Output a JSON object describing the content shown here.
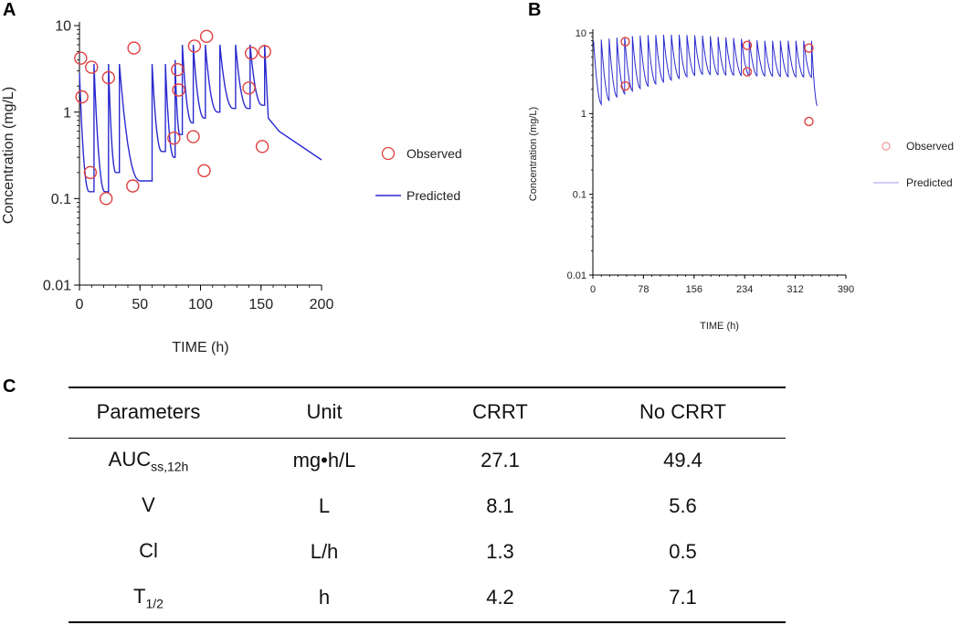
{
  "panels": {
    "a": "A",
    "b": "B",
    "c": "C"
  },
  "chart_data": [
    {
      "id": "A",
      "type": "line",
      "xlabel": "TIME (h)",
      "ylabel": "Concentration (mg/L)",
      "xlim": [
        0,
        200
      ],
      "ylim": [
        0.01,
        10
      ],
      "yscale": "log",
      "xticks": [
        "0",
        "50",
        "100",
        "150",
        "200"
      ],
      "yticks": [
        "0.01",
        "0.1",
        "1",
        "10"
      ],
      "legend": [
        "Observed",
        "Predicted"
      ],
      "legend_position": "right",
      "colors": {
        "observed": "#e04040",
        "predicted": "#2a2ad0"
      },
      "series": [
        {
          "name": "Observed",
          "type": "scatter",
          "points": [
            [
              1,
              4.2
            ],
            [
              2,
              1.5
            ],
            [
              9,
              0.2
            ],
            [
              10,
              3.3
            ],
            [
              22,
              0.1
            ],
            [
              24,
              2.5
            ],
            [
              44,
              0.14
            ],
            [
              45,
              5.5
            ],
            [
              78,
              0.5
            ],
            [
              81,
              3.1
            ],
            [
              82,
              1.8
            ],
            [
              94,
              0.52
            ],
            [
              95,
              5.8
            ],
            [
              103,
              0.21
            ],
            [
              105,
              7.5
            ],
            [
              140,
              1.9
            ],
            [
              142,
              4.8
            ],
            [
              151,
              0.4
            ],
            [
              153,
              5.0
            ]
          ]
        },
        {
          "name": "Predicted",
          "type": "line",
          "peaks": [
            [
              0,
              2.8
            ],
            [
              12,
              3.6
            ],
            [
              24,
              3.6
            ],
            [
              33,
              3.6
            ],
            [
              60,
              3.6
            ],
            [
              71,
              3.6
            ],
            [
              79,
              4.0
            ],
            [
              85,
              6.0
            ],
            [
              94,
              6.0
            ],
            [
              104,
              6.0
            ],
            [
              116,
              6.0
            ],
            [
              129,
              6.0
            ],
            [
              141,
              6.0
            ],
            [
              153,
              6.0
            ]
          ],
          "troughs": [
            [
              8,
              0.12
            ],
            [
              21,
              0.12
            ],
            [
              30,
              0.2
            ],
            [
              50,
              0.16
            ],
            [
              68,
              0.35
            ],
            [
              78,
              0.3
            ],
            [
              83,
              0.55
            ],
            [
              93,
              0.75
            ],
            [
              103,
              0.85
            ],
            [
              114,
              1.0
            ],
            [
              127,
              1.1
            ],
            [
              139,
              1.1
            ],
            [
              151,
              1.2
            ]
          ],
          "tail": [
            [
              156,
              0.85
            ],
            [
              165,
              0.6
            ],
            [
              200,
              0.28
            ]
          ]
        }
      ]
    },
    {
      "id": "B",
      "type": "line",
      "xlabel": "TIME (h)",
      "ylabel": "Concentration (mg/L)",
      "xlim": [
        0,
        390
      ],
      "ylim": [
        0.01,
        10
      ],
      "yscale": "log",
      "xticks": [
        "0",
        "78",
        "156",
        "234",
        "312",
        "390"
      ],
      "yticks": [
        "0.01",
        "0.1",
        "1",
        "10"
      ],
      "legend": [
        "Observed",
        "Predicted"
      ],
      "legend_position": "right",
      "colors": {
        "observed": "#e04040",
        "predicted": "#2a2ad0"
      },
      "series": [
        {
          "name": "Observed",
          "type": "scatter",
          "points": [
            [
              50,
              7.8
            ],
            [
              50,
              2.2
            ],
            [
              238,
              7.0
            ],
            [
              238,
              3.3
            ],
            [
              333,
              6.5
            ],
            [
              333,
              0.8
            ]
          ]
        },
        {
          "name": "Predicted",
          "type": "line",
          "dose_interval": 12,
          "n_doses": 29,
          "peak_range": [
            8.0,
            9.8
          ],
          "trough_range": [
            1.3,
            3.3
          ],
          "end_time": 346,
          "end_value": 1.25
        }
      ]
    }
  ],
  "table": {
    "headers": [
      "Parameters",
      "Unit",
      "CRRT",
      "No CRRT"
    ],
    "rows": [
      {
        "param": "AUC",
        "param_sub": "ss,12h",
        "unit": "mg•h/L",
        "crrt": "27.1",
        "no_crrt": "49.4"
      },
      {
        "param": "V",
        "param_sub": "",
        "unit": "L",
        "crrt": "8.1",
        "no_crrt": "5.6"
      },
      {
        "param": "Cl",
        "param_sub": "",
        "unit": "L/h",
        "crrt": "1.3",
        "no_crrt": "0.5"
      },
      {
        "param": "T",
        "param_sub": "1/2",
        "unit": "h",
        "crrt": "4.2",
        "no_crrt": "7.1"
      }
    ]
  }
}
